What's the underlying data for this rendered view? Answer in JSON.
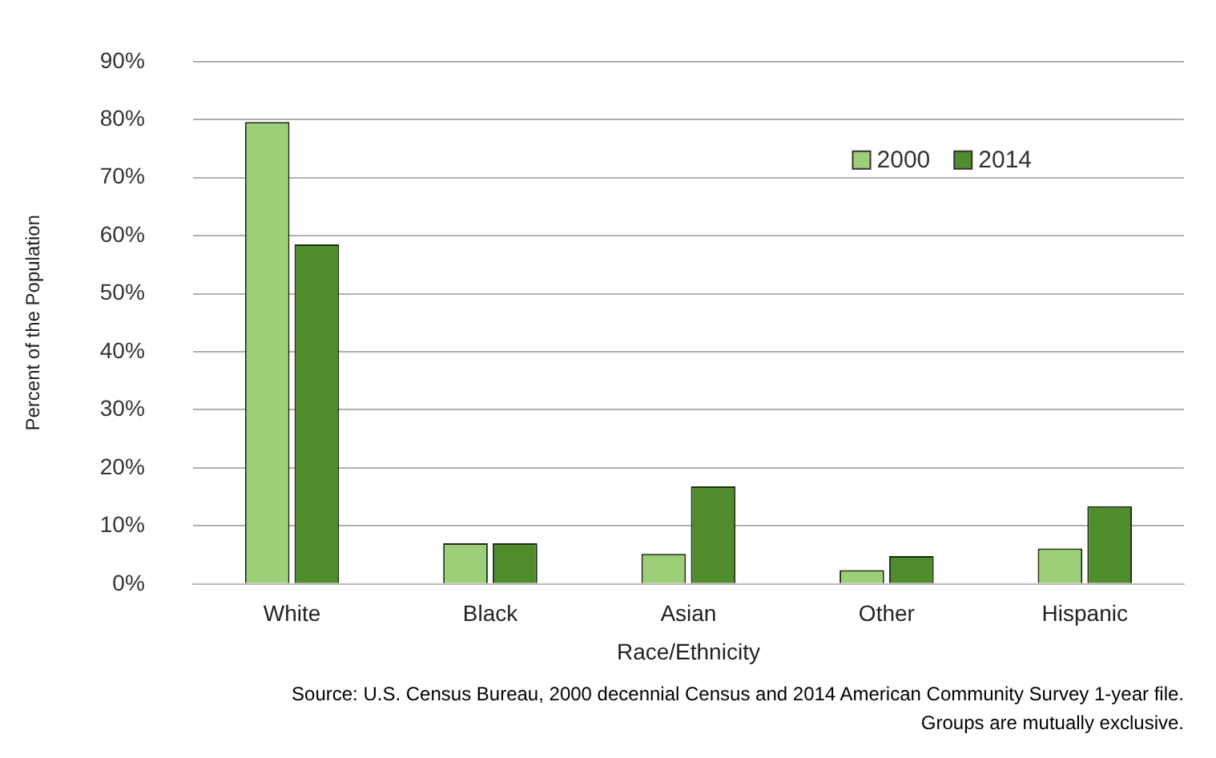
{
  "chart_data": {
    "type": "bar",
    "categories": [
      "White",
      "Black",
      "Asian",
      "Other",
      "Hispanic"
    ],
    "series": [
      {
        "name": "2000",
        "color": "#9ccf78",
        "values": [
          79.6,
          7.0,
          5.2,
          2.4,
          6.1
        ]
      },
      {
        "name": "2014",
        "color": "#4f8d2c",
        "values": [
          58.5,
          7.0,
          16.8,
          4.8,
          13.4
        ]
      }
    ],
    "xlabel": "Race/Ethnicity",
    "ylabel": "Percent of the Population",
    "ylim": [
      0,
      90
    ],
    "yticks": [
      {
        "value": 0,
        "label": "0%"
      },
      {
        "value": 10,
        "label": "10%"
      },
      {
        "value": 20,
        "label": "20%"
      },
      {
        "value": 30,
        "label": "30%"
      },
      {
        "value": 40,
        "label": "40%"
      },
      {
        "value": 50,
        "label": "50%"
      },
      {
        "value": 60,
        "label": "60%"
      },
      {
        "value": 70,
        "label": "70%"
      },
      {
        "value": 80,
        "label": "80%"
      },
      {
        "value": 90,
        "label": "90%"
      }
    ],
    "grid": "y",
    "legend": "top right",
    "annotations": [
      "Source: U.S. Census Bureau, 2000  decennial Census and 2014  American Community Survey 1-year file.",
      "Groups are mutually exclusive."
    ]
  }
}
